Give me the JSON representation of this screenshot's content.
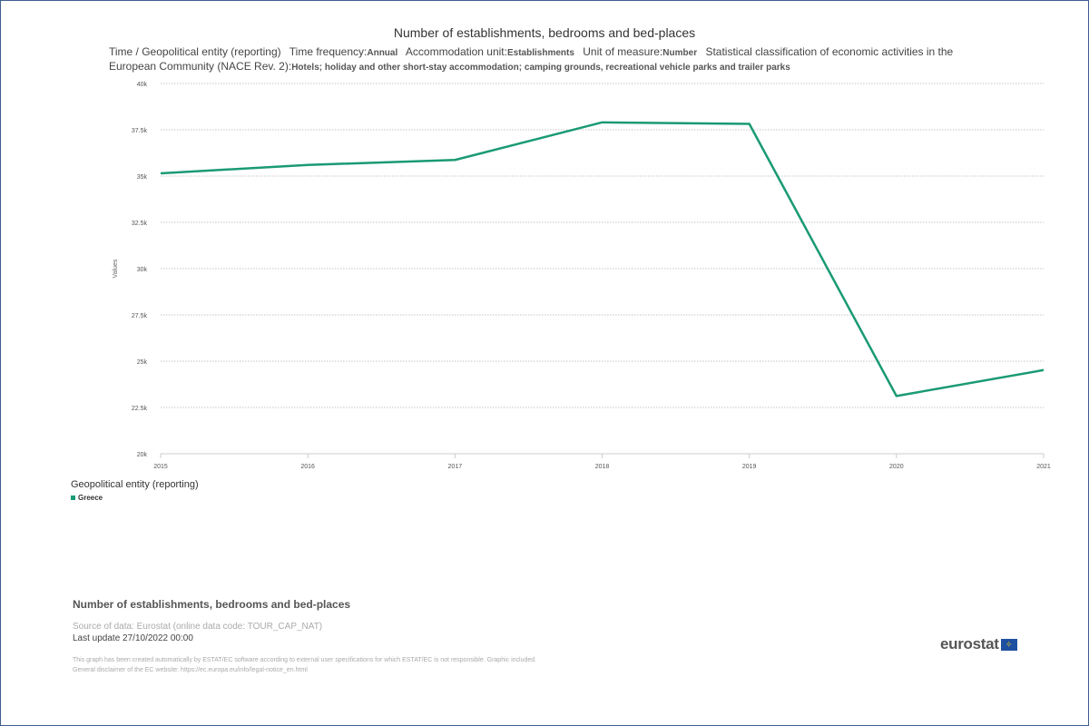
{
  "title": "Number of establishments, bedrooms and bed-places",
  "subtitle": {
    "dims_label": "Time / Geopolitical entity (reporting)",
    "freq_label": "Time frequency:",
    "freq_value": "Annual",
    "unit_label": "Accommodation unit:",
    "unit_value": "Establishments",
    "measure_label": "Unit of measure:",
    "measure_value": "Number",
    "nace_label": "Statistical classification of economic activities in the European Community (NACE Rev. 2):",
    "nace_value": "Hotels; holiday and other short-stay accommodation; camping grounds, recreational vehicle parks and trailer parks"
  },
  "chart_data": {
    "type": "line",
    "title": "Number of establishments, bedrooms and bed-places",
    "xlabel": "",
    "ylabel": "Values",
    "categories": [
      "2015",
      "2016",
      "2017",
      "2018",
      "2019",
      "2020",
      "2021"
    ],
    "series": [
      {
        "name": "Greece",
        "color": "#1a9a74",
        "values": [
          35150,
          35600,
          35870,
          37900,
          37820,
          23120,
          24520
        ]
      }
    ],
    "ylim": [
      20000,
      40000
    ],
    "yticks": [
      20000,
      22500,
      25000,
      27500,
      30000,
      32500,
      35000,
      37500,
      40000
    ],
    "ytick_labels": [
      "20k",
      "22.5k",
      "25k",
      "27.5k",
      "30k",
      "32.5k",
      "35k",
      "37.5k",
      "40k"
    ],
    "grid": true,
    "legend_position": "bottom-left"
  },
  "legend": {
    "title": "Geopolitical entity (reporting)",
    "items": [
      "Greece"
    ]
  },
  "footer": {
    "title": "Number of establishments, bedrooms and bed-places",
    "source": "Source of data: Eurostat (online data code: TOUR_CAP_NAT)",
    "last_update": "Last update 27/10/2022 00:00",
    "disclaimer_1": "This graph has been created automatically by ESTAT/EC software according to external user specifications for which ESTAT/EC is not responsible. Graphic included.",
    "disclaimer_2": "General disclaimer of the EC website: https://ec.europa.eu/info/legal-notice_en.html"
  },
  "logo": {
    "text": "eurostat",
    "flag_icon": "eu-flag-icon"
  }
}
